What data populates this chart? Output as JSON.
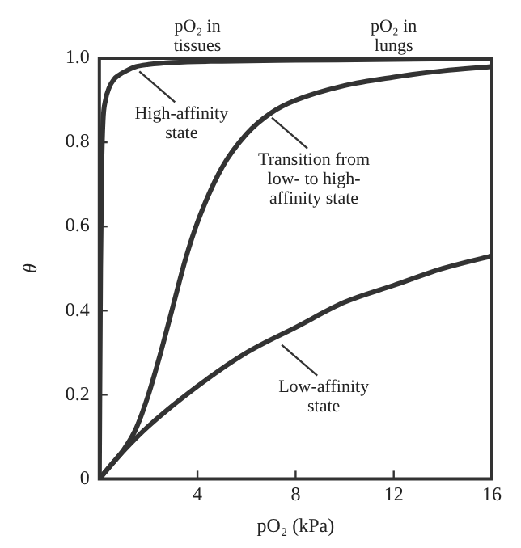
{
  "chart_data": {
    "type": "line",
    "xlabel": "pO₂ (kPa)",
    "ylabel": "θ",
    "xlim": [
      0,
      16
    ],
    "xticks": [
      4,
      8,
      12,
      16
    ],
    "ylim": [
      0,
      1
    ],
    "yticks": [
      0,
      0.2,
      0.4,
      0.6,
      0.8,
      {
        "value": 1,
        "label": "1.0"
      }
    ],
    "series": [
      {
        "color": "#333333",
        "x": [
          0,
          0.05,
          0.1,
          0.15,
          0.25,
          0.4,
          0.6,
          0.8,
          1.1,
          1.5,
          2,
          3,
          5,
          8,
          12,
          16
        ],
        "values": [
          0,
          0.5,
          0.75,
          0.85,
          0.9,
          0.93,
          0.95,
          0.96,
          0.97,
          0.98,
          0.985,
          0.99,
          0.993,
          0.995,
          0.997,
          1.0
        ]
      },
      {
        "color": "#333333",
        "x": [
          0,
          0.5,
          1,
          1.5,
          2,
          2.5,
          3,
          3.5,
          4,
          5,
          6,
          7,
          8,
          10,
          12,
          14,
          16
        ],
        "values": [
          0,
          0.035,
          0.07,
          0.12,
          0.2,
          0.3,
          0.41,
          0.52,
          0.61,
          0.74,
          0.82,
          0.87,
          0.9,
          0.935,
          0.955,
          0.97,
          0.98
        ]
      },
      {
        "color": "#333333",
        "x": [
          0,
          1,
          2,
          4,
          6,
          8,
          10,
          12,
          14,
          16
        ],
        "values": [
          0,
          0.067,
          0.125,
          0.22,
          0.3,
          0.36,
          0.42,
          0.46,
          0.5,
          0.53
        ]
      }
    ],
    "annotations": [
      "pO₂ in\ntissues",
      "pO₂ in\nlungs",
      {
        "text": "High-affinity\nstate",
        "x": 1.5,
        "y": 0.98
      },
      {
        "text": "Transition from\nlow- to high-\naffinity state",
        "x": 6.9,
        "y": 0.87
      },
      {
        "text": "Low-affinity\nstate",
        "x": 7.3,
        "y": 0.33
      }
    ],
    "grid": false,
    "legend": false,
    "marker": "none",
    "line_style": "solid"
  }
}
